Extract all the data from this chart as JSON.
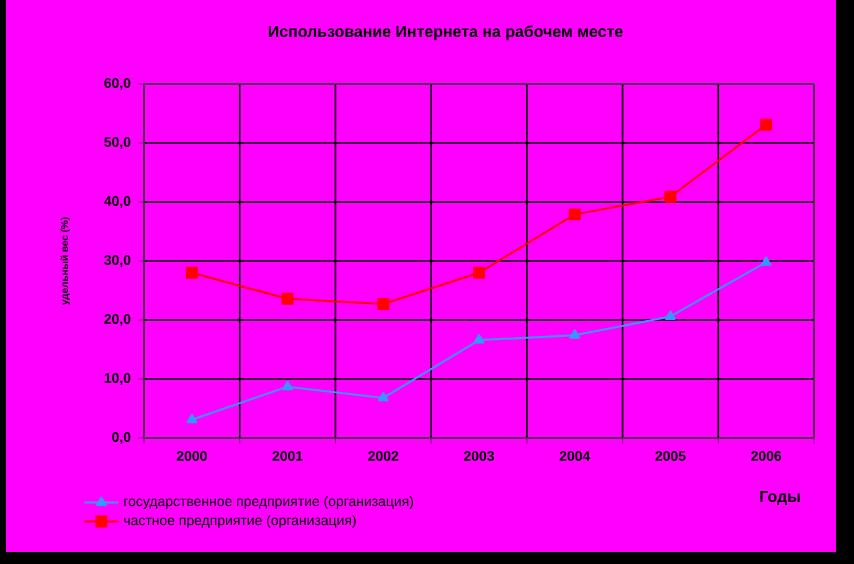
{
  "chart_data": {
    "type": "line",
    "title": "Использование Интернета на рабочем месте",
    "xlabel": "Годы",
    "ylabel": "удельный вес (%)",
    "categories": [
      "2000",
      "2001",
      "2002",
      "2003",
      "2004",
      "2005",
      "2006"
    ],
    "series": [
      {
        "name": "государственное предприятие  (организация)",
        "color": "#3399ff",
        "marker": "triangle",
        "values": [
          3.1,
          8.7,
          6.8,
          16.6,
          17.4,
          20.6,
          29.8
        ]
      },
      {
        "name": "частное предприятие (организация)",
        "color": "#ff0000",
        "marker": "square",
        "values": [
          28.0,
          23.6,
          22.7,
          28.0,
          37.9,
          40.9,
          53.1
        ]
      }
    ],
    "ylim": [
      0,
      60
    ],
    "yticks": [
      {
        "value": 0,
        "label": "0,0"
      },
      {
        "value": 10,
        "label": "10,0"
      },
      {
        "value": 20,
        "label": "20,0"
      },
      {
        "value": 30,
        "label": "30,0"
      },
      {
        "value": 40,
        "label": "40,0"
      },
      {
        "value": 50,
        "label": "50,0"
      },
      {
        "value": 60,
        "label": "60,0"
      }
    ],
    "grid": true,
    "legend": "bottom left"
  }
}
